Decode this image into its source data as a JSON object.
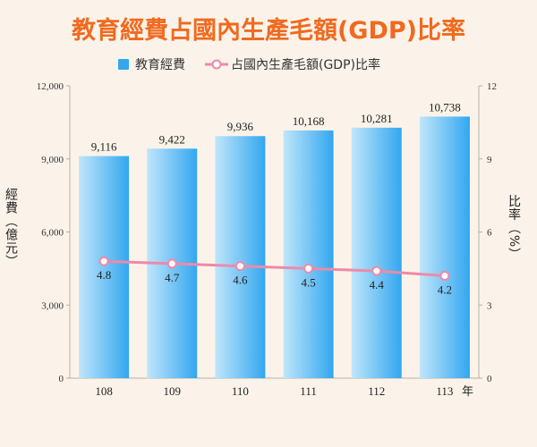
{
  "chart_data": {
    "type": "bar",
    "title": "教育經費占國內生產毛額(GDP)比率",
    "categories": [
      "108",
      "109",
      "110",
      "111",
      "112",
      "113"
    ],
    "x_unit": "年",
    "series": [
      {
        "name": "教育經費",
        "type": "bar",
        "axis": "left",
        "values": [
          9116,
          9422,
          9936,
          10168,
          10281,
          10738
        ],
        "labels": [
          "9,116",
          "9,422",
          "9,936",
          "10,168",
          "10,281",
          "10,738"
        ]
      },
      {
        "name": "占國內生產毛額(GDP)比率",
        "type": "line",
        "axis": "right",
        "values": [
          4.8,
          4.7,
          4.6,
          4.5,
          4.4,
          4.2
        ],
        "labels": [
          "4.8",
          "4.7",
          "4.6",
          "4.5",
          "4.4",
          "4.2"
        ]
      }
    ],
    "y_left": {
      "label": "經費（億元）",
      "range": [
        0,
        12000
      ],
      "ticks": [
        0,
        3000,
        6000,
        9000,
        12000
      ],
      "tick_labels": [
        "0",
        "3,000",
        "6,000",
        "9,000",
        "12,000"
      ]
    },
    "y_right": {
      "label": "比率（%）",
      "range": [
        0,
        12
      ],
      "ticks": [
        0,
        3,
        6,
        9,
        12
      ],
      "tick_labels": [
        "0",
        "3",
        "6",
        "9",
        "12"
      ]
    },
    "legend_position": "top",
    "grid": false,
    "colors": {
      "title": "#f06a1f",
      "bar_light": "#bfe6fb",
      "bar_dark": "#33a7ef",
      "line": "#ee8aa8",
      "marker_fill": "#ffffff",
      "axis": "#b9b0a6"
    }
  }
}
